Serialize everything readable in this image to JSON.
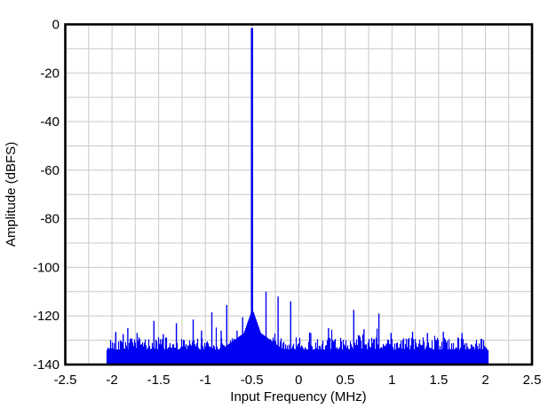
{
  "chart_data": {
    "type": "line",
    "subtype": "fft_spectrum",
    "title": "",
    "xlabel": "Input Frequency (MHz)",
    "ylabel": "Amplitude (dBFS)",
    "xlim": [
      -2.5,
      2.5
    ],
    "ylim": [
      -140,
      0
    ],
    "x_ticks": [
      -2.5,
      -2,
      -1.5,
      -1,
      -0.5,
      0,
      0.5,
      1,
      1.5,
      2,
      2.5
    ],
    "x_tick_labels": [
      "-2.5",
      "-2",
      "-1.5",
      "-1",
      "-0.5",
      "0",
      "0.5",
      "1",
      "1.5",
      "2",
      "2.5"
    ],
    "y_ticks": [
      0,
      -20,
      -40,
      -60,
      -80,
      -100,
      -120,
      -140
    ],
    "y_tick_labels": [
      "0",
      "-20",
      "-40",
      "-60",
      "-80",
      "-100",
      "-120",
      "-140"
    ],
    "grid": {
      "show": true,
      "x_spacing_mhz": 0.25,
      "y_spacing_db": 10,
      "color": "#c8c8c8"
    },
    "legend": "none",
    "series_color": "#0000f2",
    "frame_color": "#000000",
    "signal": {
      "fundamental_freq_mhz": -0.5,
      "fundamental_level_dbfs": -1.5,
      "data_range_mhz": [
        -2.055,
        2.02
      ],
      "noise_floor_typ_dbfs": -130,
      "noise_floor_bottom_dbfs": -140,
      "noise_model": {
        "base": -133.8,
        "jitter": 5.0,
        "bump_chance": 0.07,
        "bump_min": 1.5,
        "bump_span": 3.5
      },
      "skirt": {
        "narrow_peak": -117,
        "narrow_slope": 110,
        "broad_peak": -124.5,
        "broad_slope": 28
      }
    },
    "spurs": [
      {
        "f": -1.96,
        "level": -127
      },
      {
        "f": -1.88,
        "level": -127.5
      },
      {
        "f": -1.83,
        "level": -125
      },
      {
        "f": -1.73,
        "level": -127
      },
      {
        "f": -1.55,
        "level": -122
      },
      {
        "f": -1.45,
        "level": -127.5
      },
      {
        "f": -1.31,
        "level": -123
      },
      {
        "f": -1.13,
        "level": -121.5
      },
      {
        "f": -1.04,
        "level": -126
      },
      {
        "f": -0.93,
        "level": -118.5
      },
      {
        "f": -0.83,
        "level": -126
      },
      {
        "f": -0.77,
        "level": -115.5
      },
      {
        "f": -0.66,
        "level": -126
      },
      {
        "f": -0.6,
        "level": -120.5
      },
      {
        "f": -0.35,
        "level": -110
      },
      {
        "f": -0.22,
        "level": -112
      },
      {
        "f": -0.085,
        "level": -114
      },
      {
        "f": 0.13,
        "level": -127
      },
      {
        "f": 0.32,
        "level": -125
      },
      {
        "f": 0.59,
        "level": -117.5
      },
      {
        "f": 0.7,
        "level": -125.5
      },
      {
        "f": 0.86,
        "level": -119
      },
      {
        "f": 0.99,
        "level": -127
      },
      {
        "f": 1.22,
        "level": -126.5
      },
      {
        "f": 1.38,
        "level": -127
      },
      {
        "f": 1.55,
        "level": -126.5
      },
      {
        "f": 1.75,
        "level": -127
      }
    ]
  }
}
